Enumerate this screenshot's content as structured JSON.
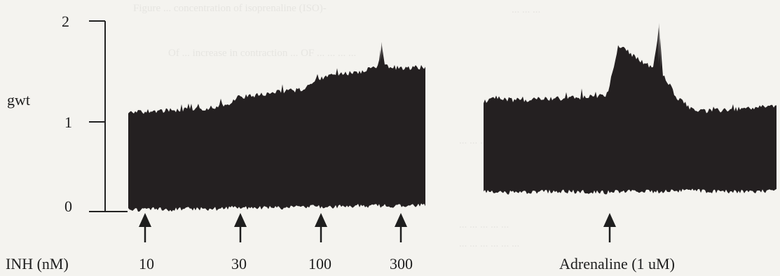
{
  "chart_data": [
    {
      "type": "line",
      "ylabel": "gwt",
      "ylim": [
        0,
        2
      ],
      "yticks": [
        0,
        1,
        2
      ],
      "xlabel": "INH (nM)",
      "markers": [
        {
          "label": "10"
        },
        {
          "label": "30"
        },
        {
          "label": "100"
        },
        {
          "label": "300"
        }
      ],
      "series": [
        {
          "values": [
            {
              "t": 0.0,
              "top": 1.03,
              "bottom": 0.02
            },
            {
              "t": 0.05,
              "top": 1.05,
              "bottom": 0.02
            },
            {
              "t": 0.1,
              "top": 1.06,
              "bottom": 0.03
            },
            {
              "t": 0.15,
              "top": 1.06,
              "bottom": 0.02
            },
            {
              "t": 0.2,
              "top": 1.07,
              "bottom": 0.03
            },
            {
              "t": 0.25,
              "top": 1.08,
              "bottom": 0.03
            },
            {
              "t": 0.3,
              "top": 1.1,
              "bottom": 0.03
            },
            {
              "t": 0.34,
              "top": 1.12,
              "bottom": 0.04
            },
            {
              "t": 0.37,
              "top": 1.2,
              "bottom": 0.04
            },
            {
              "t": 0.42,
              "top": 1.22,
              "bottom": 0.04
            },
            {
              "t": 0.5,
              "top": 1.25,
              "bottom": 0.04
            },
            {
              "t": 0.58,
              "top": 1.28,
              "bottom": 0.05
            },
            {
              "t": 0.61,
              "top": 1.32,
              "bottom": 0.05
            },
            {
              "t": 0.64,
              "top": 1.4,
              "bottom": 0.05
            },
            {
              "t": 0.7,
              "top": 1.43,
              "bottom": 0.05
            },
            {
              "t": 0.78,
              "top": 1.47,
              "bottom": 0.06
            },
            {
              "t": 0.84,
              "top": 1.52,
              "bottom": 0.06
            },
            {
              "t": 0.85,
              "top": 1.78,
              "bottom": 0.06
            },
            {
              "t": 0.86,
              "top": 1.53,
              "bottom": 0.06
            },
            {
              "t": 0.92,
              "top": 1.5,
              "bottom": 0.06
            },
            {
              "t": 1.0,
              "top": 1.52,
              "bottom": 0.07
            }
          ]
        }
      ]
    },
    {
      "type": "line",
      "ylim": [
        0,
        2
      ],
      "xlabel": "Adrenaline (1 uM)",
      "markers": [
        {
          "label": ""
        }
      ],
      "series": [
        {
          "values": [
            {
              "t": 0.0,
              "top": 1.15,
              "bottom": 0.22
            },
            {
              "t": 0.04,
              "top": 1.2,
              "bottom": 0.2
            },
            {
              "t": 0.1,
              "top": 1.17,
              "bottom": 0.2
            },
            {
              "t": 0.2,
              "top": 1.18,
              "bottom": 0.21
            },
            {
              "t": 0.3,
              "top": 1.19,
              "bottom": 0.21
            },
            {
              "t": 0.42,
              "top": 1.22,
              "bottom": 0.2
            },
            {
              "t": 0.44,
              "top": 1.45,
              "bottom": 0.21
            },
            {
              "t": 0.46,
              "top": 1.75,
              "bottom": 0.21
            },
            {
              "t": 0.52,
              "top": 1.62,
              "bottom": 0.21
            },
            {
              "t": 0.58,
              "top": 1.5,
              "bottom": 0.21
            },
            {
              "t": 0.6,
              "top": 1.98,
              "bottom": 0.21
            },
            {
              "t": 0.61,
              "top": 1.45,
              "bottom": 0.21
            },
            {
              "t": 0.66,
              "top": 1.2,
              "bottom": 0.22
            },
            {
              "t": 0.72,
              "top": 1.05,
              "bottom": 0.22
            },
            {
              "t": 0.8,
              "top": 1.06,
              "bottom": 0.21
            },
            {
              "t": 0.9,
              "top": 1.08,
              "bottom": 0.21
            },
            {
              "t": 1.0,
              "top": 1.12,
              "bottom": 0.22
            }
          ]
        }
      ]
    }
  ],
  "background_text": [
    "Figure ... concentration of isoprenaline (ISO)-",
    "Of ... increase in contraction ... OF ... ... ... ...",
    "... ... ...",
    "... ... ... ...",
    "... ... ... ... ...",
    "... ... ... ... ... ..."
  ]
}
